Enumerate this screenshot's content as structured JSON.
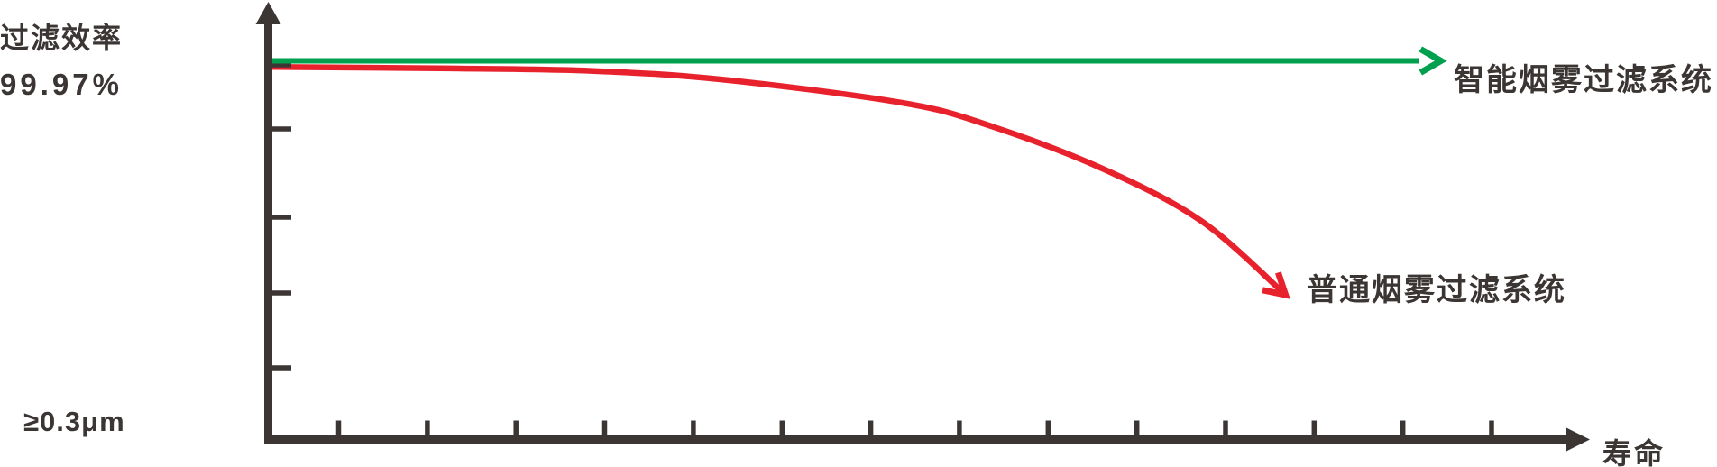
{
  "figure": {
    "background": "#ffffff",
    "ink_color": "#3B3534"
  },
  "labels": {
    "y_axis_title": "过滤效率",
    "y_axis_value": "99.97%",
    "particle_size": "≥0.3μm",
    "x_axis_label": "寿命"
  },
  "chart_data": {
    "type": "line",
    "title": "",
    "xlabel": "寿命",
    "ylabel": "过滤效率",
    "y_reference_value": "99.97%",
    "particle_size_note": "≥0.3μm",
    "grid": false,
    "legend_position": "inline-arrow-labels",
    "x_axis": {
      "tick_count": 14,
      "tick_labels": []
    },
    "y_axis": {
      "tick_count": 5,
      "tick_labels": [],
      "reference_level": "99.97%"
    },
    "series": [
      {
        "name": "智能烟雾过滤系统",
        "color": "#00A04F",
        "style": "straight-line-with-arrow",
        "description": "constant efficiency of 99.97% across entire lifetime",
        "points": [
          [
            0.0,
            1.0
          ],
          [
            0.886,
            1.0
          ]
        ],
        "arrow_tip": [
          0.903,
          1.0
        ],
        "arrow_angle_deg": 0
      },
      {
        "name": "普通烟雾过滤系统",
        "color": "#E8222D",
        "style": "curved-line-with-arrow",
        "description": "efficiency starts near 99.97% and degrades increasingly over lifetime",
        "points": [
          [
            0.0,
            0.984
          ],
          [
            0.138,
            0.98
          ],
          [
            0.243,
            0.974
          ],
          [
            0.347,
            0.951
          ],
          [
            0.487,
            0.889
          ],
          [
            0.556,
            0.827
          ],
          [
            0.643,
            0.713
          ],
          [
            0.718,
            0.577
          ],
          [
            0.783,
            0.382
          ]
        ],
        "arrow_tip": [
          0.783,
          0.382
        ],
        "arrow_angle_deg": 41.7
      }
    ]
  }
}
